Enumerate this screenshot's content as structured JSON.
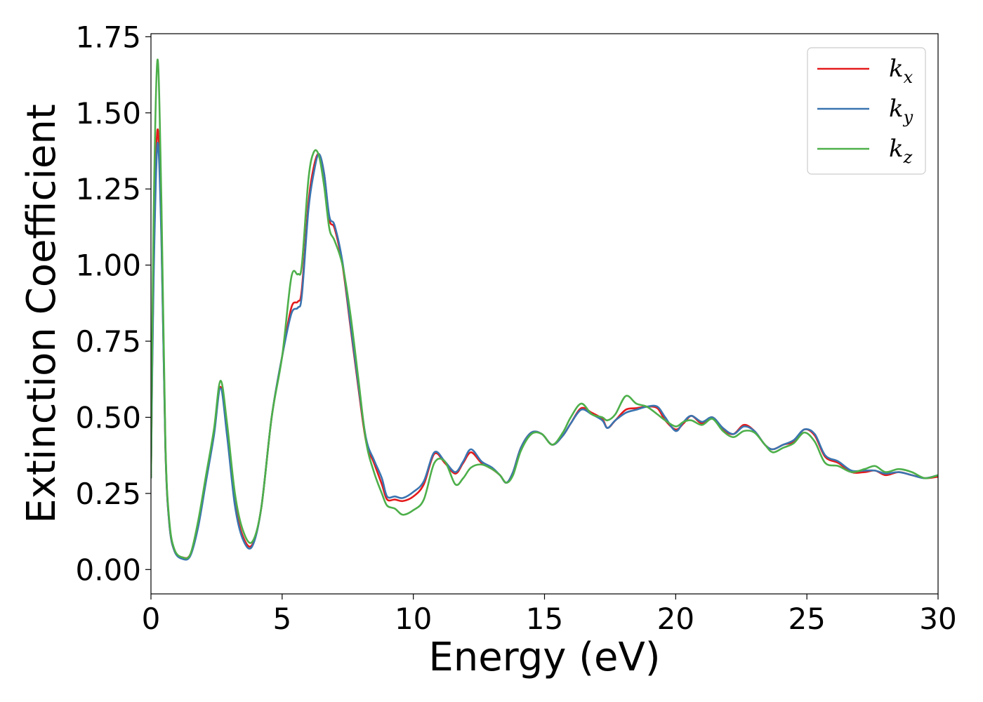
{
  "chart_data": {
    "type": "line",
    "title": "",
    "xlabel": "Energy (eV)",
    "ylabel": "Extinction Coefficient",
    "xlim": [
      0,
      30
    ],
    "ylim": [
      -0.08,
      1.76
    ],
    "xticks": [
      0,
      5,
      10,
      15,
      20,
      25,
      30
    ],
    "xtick_labels": [
      "0",
      "5",
      "10",
      "15",
      "20",
      "25",
      "30"
    ],
    "yticks": [
      0.0,
      0.25,
      0.5,
      0.75,
      1.0,
      1.25,
      1.5,
      1.75
    ],
    "ytick_labels": [
      "0.00",
      "0.25",
      "0.50",
      "0.75",
      "1.00",
      "1.25",
      "1.50",
      "1.75"
    ],
    "grid": false,
    "legend_position": "top-right",
    "series": [
      {
        "name": "k_x",
        "base": "k",
        "subscript": "x",
        "color": "#e41a1c",
        "points": [
          [
            0,
            0.3
          ],
          [
            0.1,
            1.0
          ],
          [
            0.25,
            1.445
          ],
          [
            0.4,
            1.1
          ],
          [
            0.55,
            0.4
          ],
          [
            0.7,
            0.15
          ],
          [
            0.9,
            0.06
          ],
          [
            1.2,
            0.04
          ],
          [
            1.5,
            0.05
          ],
          [
            1.8,
            0.15
          ],
          [
            2.1,
            0.3
          ],
          [
            2.4,
            0.45
          ],
          [
            2.65,
            0.6
          ],
          [
            2.9,
            0.45
          ],
          [
            3.2,
            0.22
          ],
          [
            3.5,
            0.11
          ],
          [
            3.85,
            0.08
          ],
          [
            4.2,
            0.2
          ],
          [
            4.6,
            0.5
          ],
          [
            5.0,
            0.7
          ],
          [
            5.35,
            0.86
          ],
          [
            5.6,
            0.88
          ],
          [
            5.75,
            0.92
          ],
          [
            6.0,
            1.2
          ],
          [
            6.2,
            1.32
          ],
          [
            6.4,
            1.365
          ],
          [
            6.6,
            1.3
          ],
          [
            6.8,
            1.15
          ],
          [
            7.0,
            1.12
          ],
          [
            7.3,
            1.0
          ],
          [
            7.6,
            0.8
          ],
          [
            7.9,
            0.6
          ],
          [
            8.2,
            0.42
          ],
          [
            8.5,
            0.35
          ],
          [
            8.8,
            0.28
          ],
          [
            9.0,
            0.23
          ],
          [
            9.3,
            0.23
          ],
          [
            9.6,
            0.225
          ],
          [
            10.0,
            0.24
          ],
          [
            10.4,
            0.28
          ],
          [
            10.8,
            0.38
          ],
          [
            11.2,
            0.35
          ],
          [
            11.6,
            0.315
          ],
          [
            11.9,
            0.35
          ],
          [
            12.2,
            0.385
          ],
          [
            12.6,
            0.35
          ],
          [
            13.0,
            0.33
          ],
          [
            13.3,
            0.31
          ],
          [
            13.55,
            0.285
          ],
          [
            13.8,
            0.32
          ],
          [
            14.1,
            0.4
          ],
          [
            14.5,
            0.45
          ],
          [
            14.9,
            0.445
          ],
          [
            15.3,
            0.41
          ],
          [
            15.7,
            0.44
          ],
          [
            16.0,
            0.48
          ],
          [
            16.4,
            0.53
          ],
          [
            16.8,
            0.515
          ],
          [
            17.2,
            0.495
          ],
          [
            17.4,
            0.465
          ],
          [
            17.7,
            0.49
          ],
          [
            18.1,
            0.525
          ],
          [
            18.5,
            0.53
          ],
          [
            18.9,
            0.535
          ],
          [
            19.3,
            0.53
          ],
          [
            19.6,
            0.49
          ],
          [
            20.0,
            0.46
          ],
          [
            20.3,
            0.48
          ],
          [
            20.6,
            0.505
          ],
          [
            21.0,
            0.48
          ],
          [
            21.4,
            0.5
          ],
          [
            21.8,
            0.46
          ],
          [
            22.2,
            0.445
          ],
          [
            22.6,
            0.475
          ],
          [
            23.0,
            0.455
          ],
          [
            23.4,
            0.41
          ],
          [
            23.7,
            0.395
          ],
          [
            24.1,
            0.41
          ],
          [
            24.5,
            0.42
          ],
          [
            24.9,
            0.46
          ],
          [
            25.3,
            0.44
          ],
          [
            25.7,
            0.37
          ],
          [
            26.2,
            0.35
          ],
          [
            26.7,
            0.32
          ],
          [
            27.2,
            0.32
          ],
          [
            27.6,
            0.325
          ],
          [
            28.0,
            0.31
          ],
          [
            28.5,
            0.32
          ],
          [
            29.0,
            0.31
          ],
          [
            29.5,
            0.3
          ],
          [
            30.0,
            0.305
          ]
        ]
      },
      {
        "name": "k_y",
        "base": "k",
        "subscript": "y",
        "color": "#3a74b0",
        "points": [
          [
            0,
            0.3
          ],
          [
            0.1,
            0.95
          ],
          [
            0.25,
            1.4
          ],
          [
            0.4,
            1.08
          ],
          [
            0.55,
            0.4
          ],
          [
            0.7,
            0.15
          ],
          [
            0.9,
            0.06
          ],
          [
            1.2,
            0.035
          ],
          [
            1.5,
            0.045
          ],
          [
            1.8,
            0.14
          ],
          [
            2.1,
            0.29
          ],
          [
            2.4,
            0.44
          ],
          [
            2.65,
            0.595
          ],
          [
            2.9,
            0.44
          ],
          [
            3.2,
            0.21
          ],
          [
            3.5,
            0.1
          ],
          [
            3.85,
            0.075
          ],
          [
            4.2,
            0.2
          ],
          [
            4.6,
            0.5
          ],
          [
            5.0,
            0.7
          ],
          [
            5.35,
            0.84
          ],
          [
            5.6,
            0.86
          ],
          [
            5.75,
            0.9
          ],
          [
            6.0,
            1.18
          ],
          [
            6.2,
            1.3
          ],
          [
            6.4,
            1.365
          ],
          [
            6.6,
            1.3
          ],
          [
            6.8,
            1.16
          ],
          [
            7.0,
            1.13
          ],
          [
            7.3,
            1.01
          ],
          [
            7.6,
            0.81
          ],
          [
            7.9,
            0.61
          ],
          [
            8.2,
            0.43
          ],
          [
            8.5,
            0.36
          ],
          [
            8.8,
            0.3
          ],
          [
            9.0,
            0.24
          ],
          [
            9.3,
            0.24
          ],
          [
            9.6,
            0.235
          ],
          [
            10.0,
            0.255
          ],
          [
            10.4,
            0.29
          ],
          [
            10.8,
            0.385
          ],
          [
            11.2,
            0.355
          ],
          [
            11.6,
            0.32
          ],
          [
            11.9,
            0.355
          ],
          [
            12.2,
            0.395
          ],
          [
            12.6,
            0.355
          ],
          [
            13.0,
            0.335
          ],
          [
            13.3,
            0.31
          ],
          [
            13.55,
            0.285
          ],
          [
            13.8,
            0.32
          ],
          [
            14.1,
            0.4
          ],
          [
            14.5,
            0.45
          ],
          [
            14.9,
            0.445
          ],
          [
            15.3,
            0.41
          ],
          [
            15.7,
            0.44
          ],
          [
            16.0,
            0.48
          ],
          [
            16.4,
            0.525
          ],
          [
            16.8,
            0.51
          ],
          [
            17.2,
            0.49
          ],
          [
            17.4,
            0.465
          ],
          [
            17.7,
            0.49
          ],
          [
            18.1,
            0.515
          ],
          [
            18.5,
            0.525
          ],
          [
            18.9,
            0.535
          ],
          [
            19.3,
            0.535
          ],
          [
            19.6,
            0.5
          ],
          [
            20.0,
            0.455
          ],
          [
            20.3,
            0.485
          ],
          [
            20.6,
            0.505
          ],
          [
            21.0,
            0.485
          ],
          [
            21.4,
            0.5
          ],
          [
            21.8,
            0.465
          ],
          [
            22.2,
            0.445
          ],
          [
            22.6,
            0.47
          ],
          [
            23.0,
            0.455
          ],
          [
            23.4,
            0.41
          ],
          [
            23.7,
            0.395
          ],
          [
            24.1,
            0.41
          ],
          [
            24.5,
            0.425
          ],
          [
            24.9,
            0.46
          ],
          [
            25.3,
            0.445
          ],
          [
            25.7,
            0.375
          ],
          [
            26.2,
            0.355
          ],
          [
            26.7,
            0.325
          ],
          [
            27.2,
            0.325
          ],
          [
            27.6,
            0.325
          ],
          [
            28.0,
            0.315
          ],
          [
            28.5,
            0.32
          ],
          [
            29.0,
            0.31
          ],
          [
            29.5,
            0.3
          ],
          [
            30.0,
            0.31
          ]
        ]
      },
      {
        "name": "k_z",
        "base": "k",
        "subscript": "z",
        "color": "#4daf4a",
        "points": [
          [
            0,
            0.3
          ],
          [
            0.1,
            1.15
          ],
          [
            0.25,
            1.675
          ],
          [
            0.4,
            1.2
          ],
          [
            0.55,
            0.42
          ],
          [
            0.7,
            0.16
          ],
          [
            0.9,
            0.065
          ],
          [
            1.2,
            0.04
          ],
          [
            1.5,
            0.05
          ],
          [
            1.8,
            0.16
          ],
          [
            2.1,
            0.31
          ],
          [
            2.4,
            0.46
          ],
          [
            2.65,
            0.62
          ],
          [
            2.9,
            0.48
          ],
          [
            3.2,
            0.25
          ],
          [
            3.5,
            0.13
          ],
          [
            3.85,
            0.09
          ],
          [
            4.2,
            0.2
          ],
          [
            4.6,
            0.5
          ],
          [
            5.0,
            0.7
          ],
          [
            5.35,
            0.96
          ],
          [
            5.6,
            0.97
          ],
          [
            5.75,
            1.0
          ],
          [
            6.0,
            1.28
          ],
          [
            6.2,
            1.37
          ],
          [
            6.4,
            1.36
          ],
          [
            6.6,
            1.26
          ],
          [
            6.8,
            1.12
          ],
          [
            7.0,
            1.08
          ],
          [
            7.3,
            1.0
          ],
          [
            7.6,
            0.84
          ],
          [
            7.9,
            0.63
          ],
          [
            8.2,
            0.42
          ],
          [
            8.5,
            0.32
          ],
          [
            8.8,
            0.25
          ],
          [
            9.0,
            0.21
          ],
          [
            9.3,
            0.2
          ],
          [
            9.6,
            0.18
          ],
          [
            10.0,
            0.195
          ],
          [
            10.4,
            0.23
          ],
          [
            10.8,
            0.35
          ],
          [
            11.2,
            0.355
          ],
          [
            11.6,
            0.28
          ],
          [
            11.9,
            0.3
          ],
          [
            12.2,
            0.335
          ],
          [
            12.6,
            0.345
          ],
          [
            13.0,
            0.33
          ],
          [
            13.3,
            0.31
          ],
          [
            13.55,
            0.285
          ],
          [
            13.8,
            0.31
          ],
          [
            14.1,
            0.39
          ],
          [
            14.5,
            0.445
          ],
          [
            14.9,
            0.445
          ],
          [
            15.3,
            0.41
          ],
          [
            15.7,
            0.45
          ],
          [
            16.0,
            0.5
          ],
          [
            16.4,
            0.545
          ],
          [
            16.8,
            0.51
          ],
          [
            17.2,
            0.5
          ],
          [
            17.4,
            0.49
          ],
          [
            17.7,
            0.51
          ],
          [
            18.1,
            0.57
          ],
          [
            18.5,
            0.545
          ],
          [
            18.9,
            0.535
          ],
          [
            19.3,
            0.51
          ],
          [
            19.6,
            0.49
          ],
          [
            20.0,
            0.47
          ],
          [
            20.3,
            0.485
          ],
          [
            20.6,
            0.49
          ],
          [
            21.0,
            0.475
          ],
          [
            21.4,
            0.495
          ],
          [
            21.8,
            0.455
          ],
          [
            22.2,
            0.435
          ],
          [
            22.6,
            0.455
          ],
          [
            23.0,
            0.45
          ],
          [
            23.4,
            0.41
          ],
          [
            23.7,
            0.385
          ],
          [
            24.1,
            0.4
          ],
          [
            24.5,
            0.415
          ],
          [
            24.9,
            0.45
          ],
          [
            25.3,
            0.42
          ],
          [
            25.7,
            0.35
          ],
          [
            26.2,
            0.34
          ],
          [
            26.7,
            0.32
          ],
          [
            27.2,
            0.33
          ],
          [
            27.6,
            0.34
          ],
          [
            28.0,
            0.32
          ],
          [
            28.5,
            0.33
          ],
          [
            29.0,
            0.32
          ],
          [
            29.5,
            0.3
          ],
          [
            30.0,
            0.31
          ]
        ]
      }
    ]
  }
}
